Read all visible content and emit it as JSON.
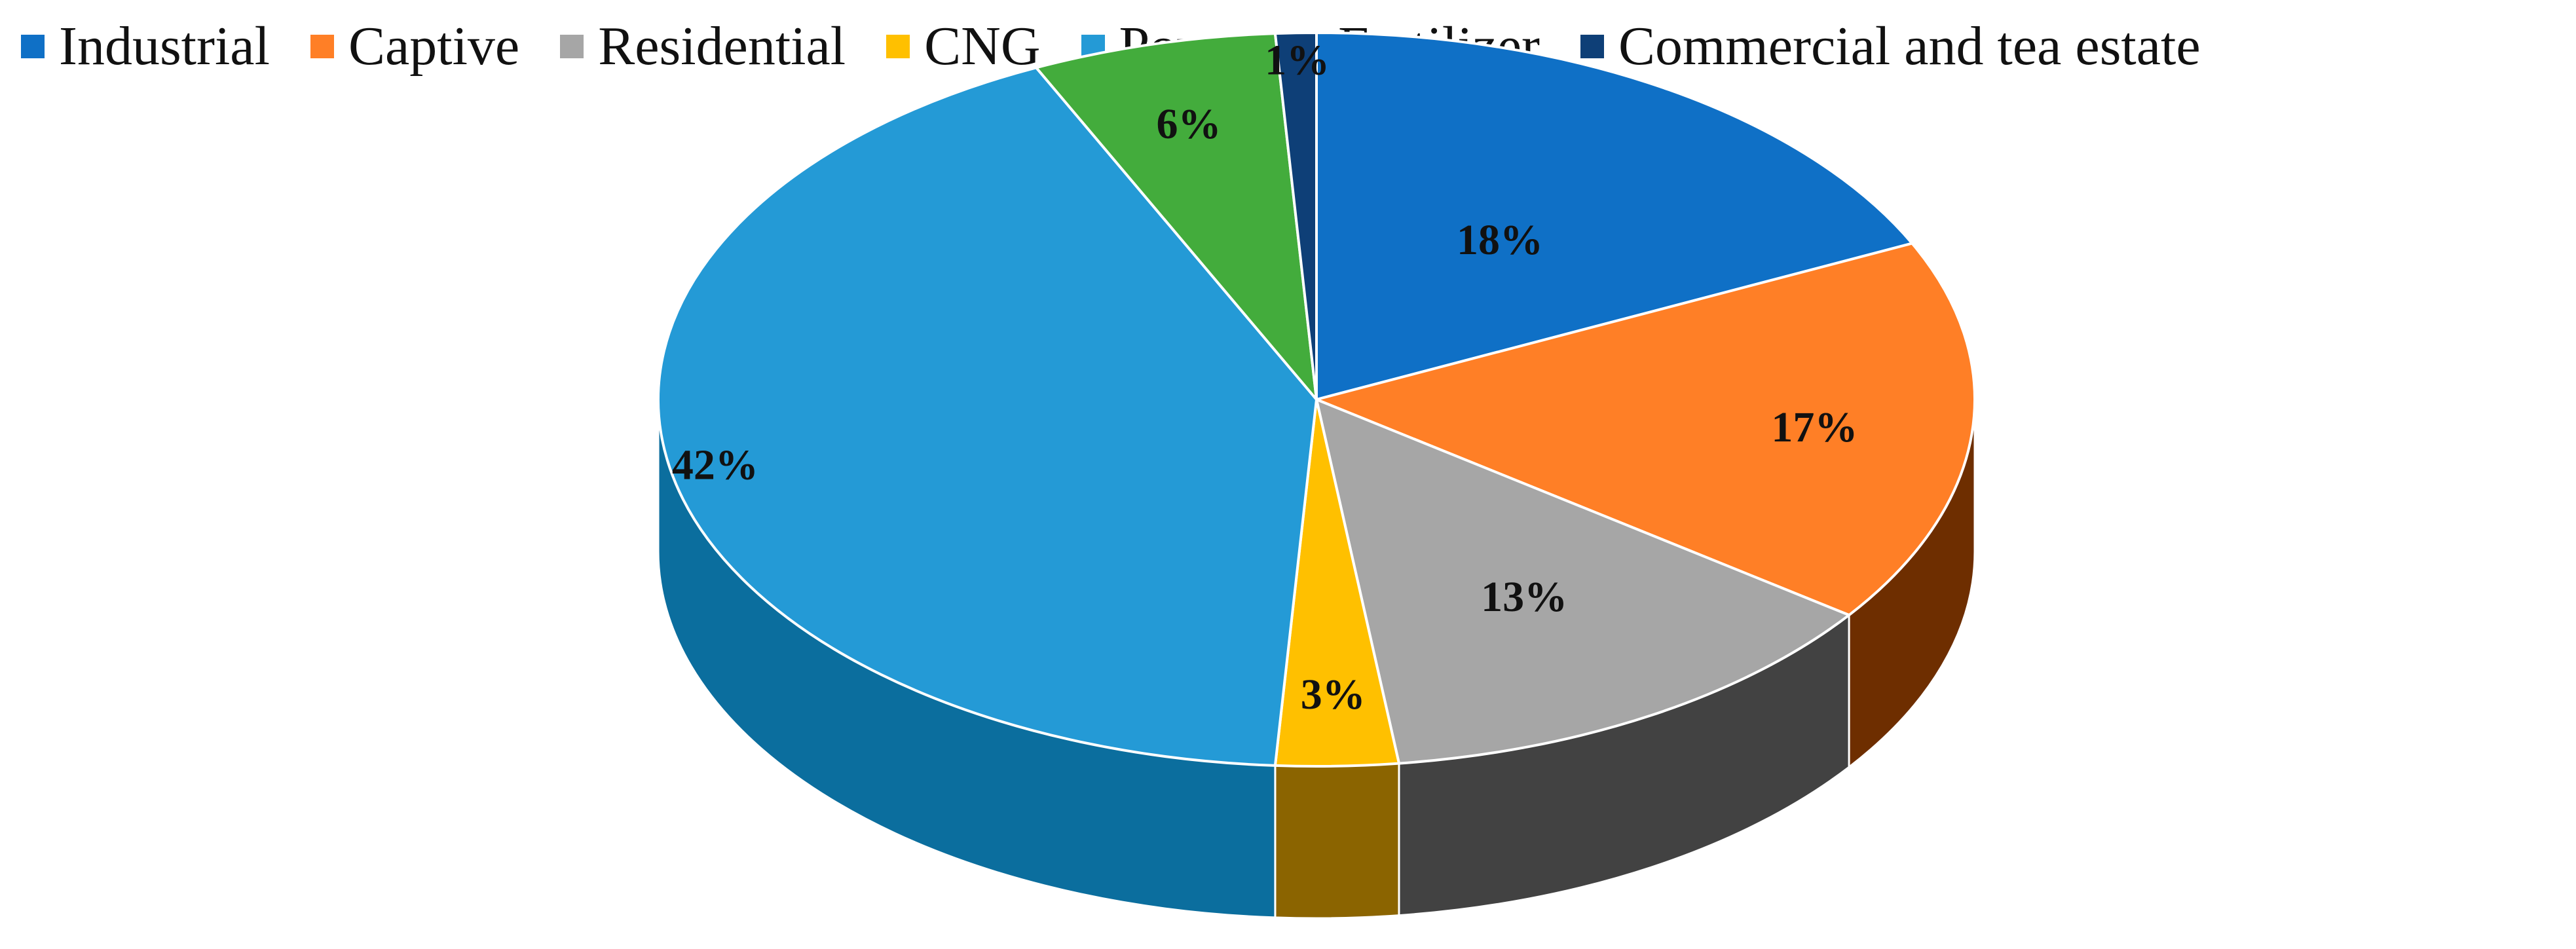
{
  "chart_data": {
    "type": "pie",
    "title": "",
    "three_d": true,
    "legend_position": "top",
    "categories": [
      "Industrial",
      "Captive",
      "Residential",
      "CNG",
      "Power",
      "Fertilizer",
      "Commercial and tea estate"
    ],
    "values": [
      18,
      17,
      13,
      3,
      42,
      6,
      1
    ],
    "labels": [
      "18%",
      "17%",
      "13%",
      "3%",
      "42%",
      "6%",
      "1%"
    ],
    "colors": [
      "#0F70C6",
      "#FF7F26",
      "#A6A6A6",
      "#FFC000",
      "#249AD6",
      "#43AC3C",
      "#0E3F77"
    ],
    "side_colors": [
      "#0A4F8E",
      "#6E2E00",
      "#424242",
      "#8B6400",
      "#0B6E9E",
      "#23691F",
      "#07254A"
    ]
  }
}
